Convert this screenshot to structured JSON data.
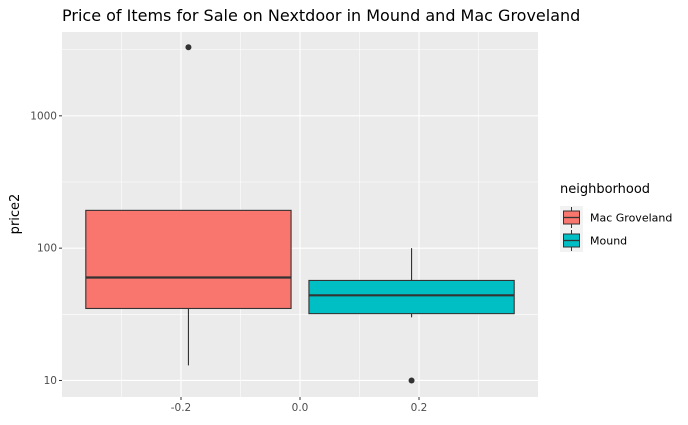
{
  "chart_data": {
    "type": "boxplot",
    "title": "Price of Items for Sale on Nextdoor in Mound and Mac Groveland",
    "xlabel": "",
    "ylabel": "price2",
    "yscale": "log10",
    "ylim": [
      7.5,
      4300
    ],
    "xlim": [
      -0.4,
      0.4
    ],
    "x_ticks": [
      -0.2,
      0.0,
      0.2
    ],
    "x_tick_labels": [
      "-0.2",
      "0.0",
      "0.2"
    ],
    "y_ticks": [
      10,
      100,
      1000
    ],
    "y_tick_labels": [
      "10",
      "100",
      "1000"
    ],
    "grid": true,
    "legend": {
      "title": "neighborhood",
      "position": "right",
      "entries": [
        "Mac Groveland",
        "Mound"
      ]
    },
    "series": [
      {
        "name": "Mac Groveland",
        "color": "#F8766D",
        "x_center": -0.1875,
        "x_min": -0.36,
        "x_max": -0.015,
        "q1": 35,
        "median": 60,
        "q3": 193,
        "whisker_low": 13,
        "whisker_high": 193,
        "outliers": [
          3300
        ]
      },
      {
        "name": "Mound",
        "color": "#00BFC4",
        "x_center": 0.1875,
        "x_min": 0.015,
        "x_max": 0.36,
        "q1": 32,
        "median": 44,
        "q3": 57,
        "whisker_low": 30,
        "whisker_high": 100,
        "outliers": [
          10
        ]
      }
    ]
  }
}
